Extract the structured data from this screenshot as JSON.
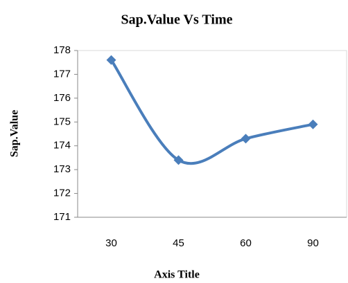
{
  "chart_data": {
    "type": "line",
    "title": "Sap.Value Vs Time",
    "x_label": "Axis Title",
    "y_label": "Sap.Value",
    "categories": [
      "30",
      "45",
      "60",
      "90"
    ],
    "series": [
      {
        "name": "Sap.Value",
        "color": "#4a7ebb",
        "values": [
          177.6,
          173.4,
          174.3,
          174.9
        ]
      }
    ],
    "ylim": [
      171,
      178
    ],
    "yticks": [
      171,
      172,
      173,
      174,
      175,
      176,
      177,
      178
    ],
    "grid": false,
    "smooth": true
  }
}
